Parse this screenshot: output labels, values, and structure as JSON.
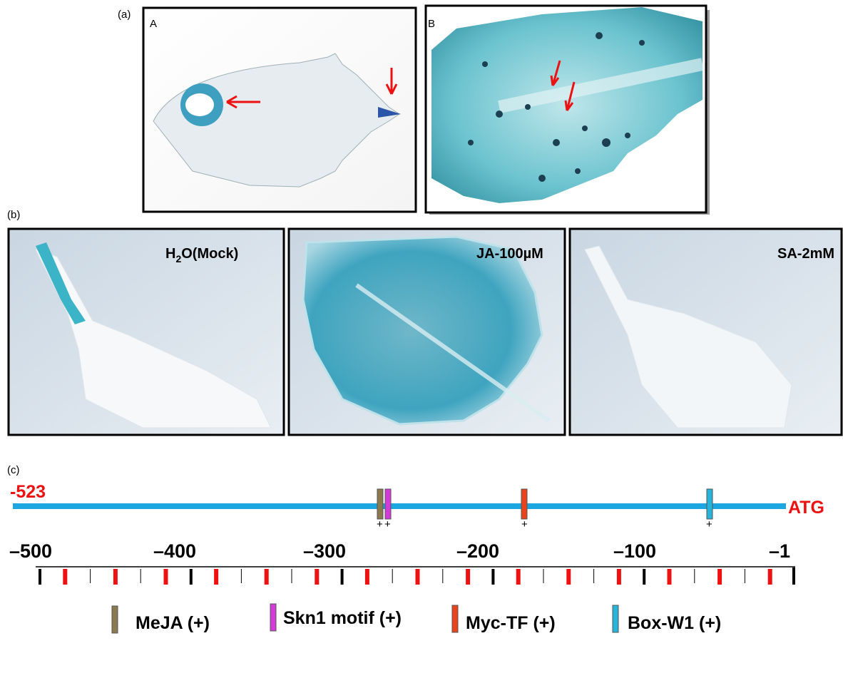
{
  "panel_a": {
    "label": "(a)",
    "photos": [
      {
        "label": "A"
      },
      {
        "label": "B"
      }
    ]
  },
  "panel_b": {
    "label": "(b)",
    "photos": [
      {
        "label": [
          "H",
          "2",
          "O(Mock)"
        ]
      },
      {
        "label": "JA-100µM"
      },
      {
        "label": "SA-2mM"
      }
    ]
  },
  "panel_c": {
    "label": "(c)",
    "start": "-523",
    "end": "ATG",
    "signs": [
      "+",
      "+",
      "+",
      "+"
    ],
    "scale_labels": [
      "–500",
      "–400",
      "–300",
      "–200",
      "–100",
      "–1"
    ],
    "legend": [
      "MeJA (+)",
      "Skn1 motif (+)",
      "Myc-TF (+)",
      "Box-W1 (+)"
    ]
  }
}
